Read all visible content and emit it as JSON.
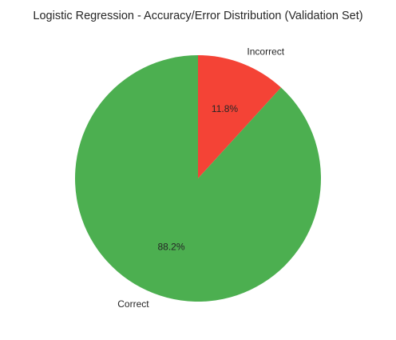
{
  "chart_data": {
    "type": "pie",
    "title": "Logistic Regression - Accuracy/Error Distribution (Validation Set)",
    "start_angle_deg": 90,
    "direction": "clockwise",
    "slices": [
      {
        "label": "Incorrect",
        "value": 11.8,
        "pct_label": "11.8%",
        "color": "#f44336"
      },
      {
        "label": "Correct",
        "value": 88.2,
        "pct_label": "88.2%",
        "color": "#4caf50"
      }
    ]
  }
}
